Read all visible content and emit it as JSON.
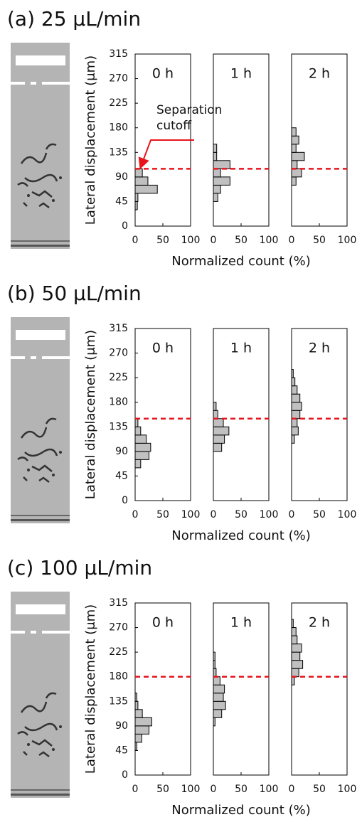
{
  "chart_data": [
    {
      "type": "histogram",
      "title": "(a) 25 μL/min",
      "ylabel": "Lateral displacement (μm)",
      "xlabel": "Normalized count (%)",
      "ylim": [
        0,
        315
      ],
      "yticks": [
        0,
        45,
        90,
        135,
        180,
        225,
        270,
        315
      ],
      "xlim": [
        0,
        100
      ],
      "xticks": [
        0,
        50,
        100
      ],
      "color": "#c0c0c0",
      "cutoff": 105,
      "cutoff_color": "#e8141c",
      "annotation": [
        "Separation",
        "cutoff"
      ],
      "subplots": [
        {
          "label": "0 h",
          "bins": [
            30,
            45,
            60,
            75,
            90,
            105
          ],
          "values": [
            4,
            5,
            40,
            23,
            13
          ]
        },
        {
          "label": "1 h",
          "bins": [
            45,
            60,
            75,
            90,
            105,
            120,
            135,
            150
          ],
          "values": [
            8,
            13,
            30,
            13,
            30,
            6,
            6
          ]
        },
        {
          "label": "2 h",
          "bins": [
            75,
            90,
            105,
            120,
            135,
            150,
            165,
            180
          ],
          "values": [
            8,
            18,
            10,
            23,
            8,
            13,
            8
          ]
        }
      ]
    },
    {
      "type": "histogram",
      "title": "(b) 50 μL/min",
      "ylabel": "Lateral displacement (μm)",
      "xlabel": "Normalized count (%)",
      "ylim": [
        0,
        315
      ],
      "yticks": [
        0,
        45,
        90,
        135,
        180,
        225,
        270,
        315
      ],
      "xlim": [
        0,
        100
      ],
      "xticks": [
        0,
        50,
        100
      ],
      "color": "#c0c0c0",
      "cutoff": 150,
      "cutoff_color": "#e8141c",
      "subplots": [
        {
          "label": "0 h",
          "bins": [
            60,
            75,
            90,
            105,
            120,
            135,
            150
          ],
          "values": [
            10,
            25,
            28,
            20,
            10,
            5
          ]
        },
        {
          "label": "1 h",
          "bins": [
            90,
            105,
            120,
            135,
            150,
            165,
            180
          ],
          "values": [
            15,
            20,
            28,
            18,
            8,
            5
          ]
        },
        {
          "label": "2 h",
          "bins": [
            105,
            120,
            135,
            150,
            165,
            180,
            195,
            210,
            225,
            240
          ],
          "values": [
            5,
            12,
            10,
            15,
            18,
            15,
            10,
            6,
            3
          ]
        }
      ]
    },
    {
      "type": "histogram",
      "title": "(c) 100 μL/min",
      "ylabel": "Lateral displacement (μm)",
      "xlabel": "Normalized count (%)",
      "ylim": [
        0,
        315
      ],
      "yticks": [
        0,
        45,
        90,
        135,
        180,
        225,
        270,
        315
      ],
      "xlim": [
        0,
        100
      ],
      "xticks": [
        0,
        50,
        100
      ],
      "color": "#c0c0c0",
      "cutoff": 180,
      "cutoff_color": "#e8141c",
      "subplots": [
        {
          "label": "0 h",
          "bins": [
            45,
            60,
            75,
            90,
            105,
            120,
            135,
            150
          ],
          "values": [
            3,
            12,
            25,
            30,
            13,
            5,
            3
          ]
        },
        {
          "label": "1 h",
          "bins": [
            90,
            105,
            120,
            135,
            150,
            165,
            180,
            195,
            210,
            225
          ],
          "values": [
            3,
            15,
            22,
            18,
            20,
            12,
            5,
            3,
            3
          ]
        },
        {
          "label": "2 h",
          "bins": [
            165,
            180,
            195,
            210,
            225,
            240,
            255,
            270,
            285
          ],
          "values": [
            5,
            13,
            20,
            15,
            18,
            10,
            8,
            3
          ]
        }
      ]
    }
  ]
}
